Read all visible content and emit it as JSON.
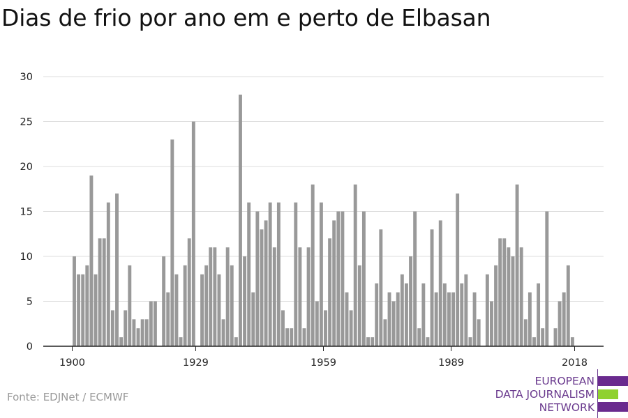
{
  "title": "Dias de frio por ano em e perto de Elbasan",
  "source": "Fonte: EDJNet / ECMWF",
  "logo": {
    "lines": [
      "EUROPEAN",
      "DATA JOURNALISM",
      "NETWORK"
    ],
    "colors": {
      "purple": "#6a2a8e",
      "green": "#8fd12f"
    }
  },
  "chart_data": {
    "type": "bar",
    "title": "Dias de frio por ano em e perto de Elbasan",
    "xlabel": "",
    "ylabel": "",
    "ylim": [
      0,
      30
    ],
    "yticks": [
      0,
      5,
      10,
      15,
      20,
      25,
      30
    ],
    "xticks": [
      1900,
      1929,
      1959,
      1989,
      2018
    ],
    "grid": true,
    "bar_color": "#999999",
    "x": [
      1900,
      1901,
      1902,
      1903,
      1904,
      1905,
      1906,
      1907,
      1908,
      1909,
      1910,
      1911,
      1912,
      1913,
      1914,
      1915,
      1916,
      1917,
      1918,
      1919,
      1920,
      1921,
      1922,
      1923,
      1924,
      1925,
      1926,
      1927,
      1928,
      1929,
      1930,
      1931,
      1932,
      1933,
      1934,
      1935,
      1936,
      1937,
      1938,
      1939,
      1940,
      1941,
      1942,
      1943,
      1944,
      1945,
      1946,
      1947,
      1948,
      1949,
      1950,
      1951,
      1952,
      1953,
      1954,
      1955,
      1956,
      1957,
      1958,
      1959,
      1960,
      1961,
      1962,
      1963,
      1964,
      1965,
      1966,
      1967,
      1968,
      1969,
      1970,
      1971,
      1972,
      1973,
      1974,
      1975,
      1976,
      1977,
      1978,
      1979,
      1980,
      1981,
      1982,
      1983,
      1984,
      1985,
      1986,
      1987,
      1988,
      1989,
      1990,
      1991,
      1992,
      1993,
      1994,
      1995,
      1996,
      1997,
      1998,
      1999,
      2000,
      2001,
      2002,
      2003,
      2004,
      2005,
      2006,
      2007,
      2008,
      2009,
      2010,
      2011,
      2012,
      2013,
      2014,
      2015,
      2016,
      2017,
      2018
    ],
    "values": [
      10,
      8,
      8,
      9,
      19,
      8,
      12,
      12,
      16,
      4,
      17,
      1,
      4,
      9,
      3,
      2,
      3,
      3,
      5,
      5,
      0,
      10,
      6,
      23,
      8,
      1,
      9,
      12,
      25,
      0,
      8,
      9,
      11,
      11,
      8,
      3,
      11,
      9,
      1,
      28,
      10,
      16,
      6,
      15,
      13,
      14,
      16,
      11,
      16,
      4,
      2,
      2,
      16,
      11,
      2,
      11,
      18,
      5,
      16,
      4,
      12,
      14,
      15,
      15,
      6,
      4,
      18,
      9,
      15,
      1,
      1,
      7,
      13,
      3,
      6,
      5,
      6,
      8,
      7,
      10,
      15,
      2,
      7,
      1,
      13,
      6,
      14,
      7,
      6,
      6,
      17,
      7,
      8,
      1,
      6,
      3,
      0,
      8,
      5,
      9,
      12,
      12,
      11,
      10,
      18,
      11,
      3,
      6,
      1,
      7,
      2,
      15,
      0,
      2,
      5,
      6,
      9,
      1,
      0
    ]
  }
}
